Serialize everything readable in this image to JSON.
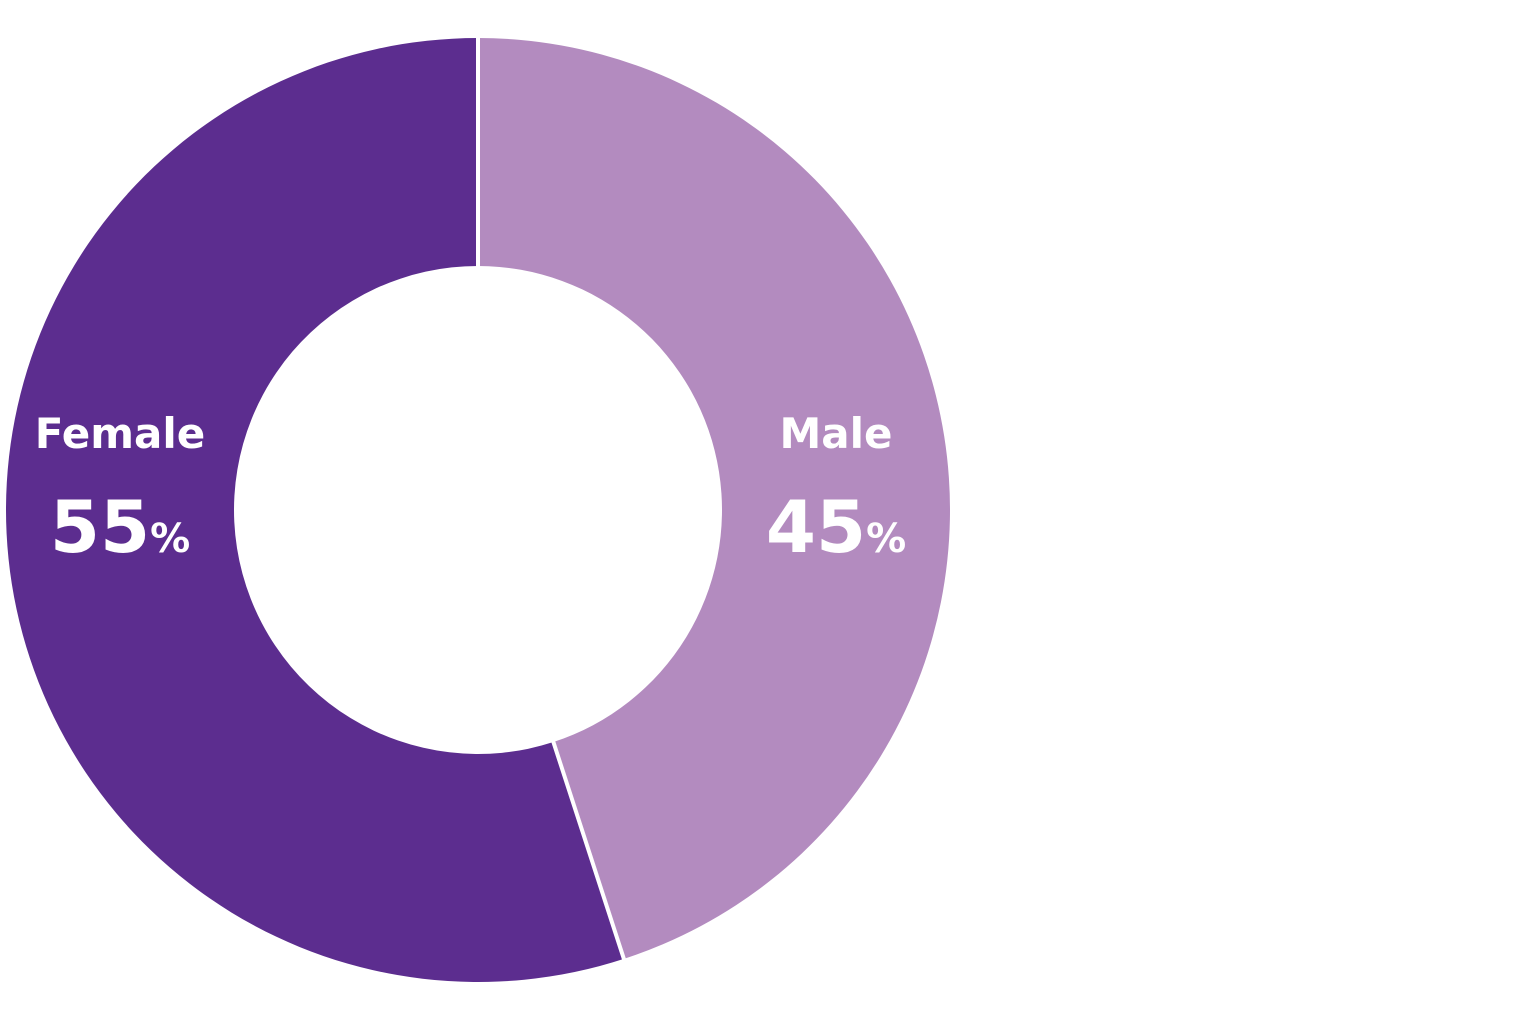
{
  "chart_data": {
    "type": "pie",
    "variant": "donut",
    "title": "",
    "legend": "none",
    "unit": "%",
    "slices": [
      {
        "label": "Female",
        "value": 55,
        "color": "#5c2d8f"
      },
      {
        "label": "Male",
        "value": 45,
        "color": "#b38bbf"
      }
    ],
    "separator_color": "#ffffff",
    "background_color": "#ffffff"
  }
}
